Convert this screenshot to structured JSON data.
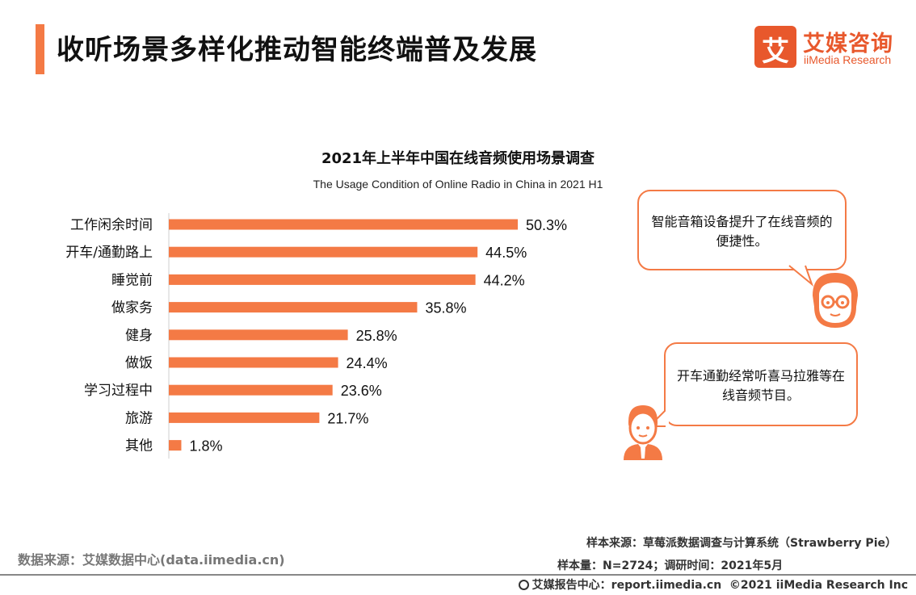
{
  "header": {
    "title": "收听场景多样化推动智能终端普及发展",
    "logo_cn": "艾媒咨询",
    "logo_en": "iiMedia Research",
    "logo_mark": "艾",
    "accent_color": "#f47a45"
  },
  "chart_data": {
    "type": "bar",
    "orientation": "horizontal",
    "title": "2021年上半年中国在线音频使用场景调查",
    "subtitle": "The Usage Condition of Online Radio in China in 2021 H1",
    "categories": [
      "工作闲余时间",
      "开车/通勤路上",
      "睡觉前",
      "做家务",
      "健身",
      "做饭",
      "学习过程中",
      "旅游",
      "其他"
    ],
    "values": [
      50.3,
      44.5,
      44.2,
      35.8,
      25.8,
      24.4,
      23.6,
      21.7,
      1.8
    ],
    "value_labels": [
      "50.3%",
      "44.5%",
      "44.2%",
      "35.8%",
      "25.8%",
      "24.4%",
      "23.6%",
      "21.7%",
      "1.8%"
    ],
    "bar_color": "#f47a45",
    "xlim": [
      0,
      60
    ],
    "grid": false,
    "legend": "none"
  },
  "callouts": {
    "bubble_1": "智能音箱设备提升了在线音频的便捷性。",
    "bubble_2": "开车通勤经常听喜马拉雅等在线音频节目。"
  },
  "footer": {
    "data_source": "数据来源：艾媒数据中心(data.iimedia.cn)",
    "sample_source": "样本来源：草莓派数据调查与计算系统（Strawberry Pie）",
    "sample_size": "样本量：N=2724；调研时间：2021年5月",
    "copyright_site": "艾媒报告中心：report.iimedia.cn",
    "copyright": "©2021  iiMedia Research  Inc"
  }
}
